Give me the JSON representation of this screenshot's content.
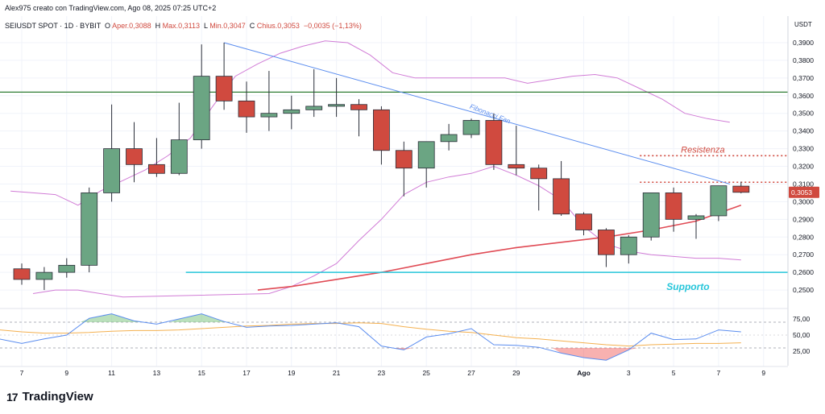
{
  "header": {
    "creator_line": "Alex975 creato con TradingView.com, Ago 08, 2025 07:25 UTC+2",
    "symbol": "SEIUSDT SPOT · 1D · BYBIT",
    "o_label": "O",
    "open": "Aper.0,3088",
    "h_label": "H",
    "high": "Max.0,3113",
    "l_label": "L",
    "low": "Min.0,3047",
    "c_label": "C",
    "close": "Chius.0,3053",
    "change": "−0,0035 (−1,13%)"
  },
  "branding": {
    "logo_text": "TradingView",
    "logo_mark": "17"
  },
  "colors": {
    "up": "#6ba583",
    "down": "#d04a3f",
    "support": "#26c6da",
    "resistance_green": "#2e7d32",
    "fib_fan": "#5b8def",
    "ma": "#e04b55",
    "bands": "#d17cd6",
    "rsi": "#5b8def",
    "rsi_ma": "#f4b04f"
  },
  "chart_data": {
    "type": "candlestick",
    "currency": "USDT",
    "ylim": [
      0.24,
      0.395
    ],
    "y_ticks": [
      "0,3900",
      "0,3800",
      "0,3700",
      "0,3600",
      "0,3500",
      "0,3400",
      "0,3300",
      "0,3200",
      "0,3100",
      "0,3000",
      "0,2900",
      "0,2800",
      "0,2700",
      "0,2600",
      "0,2500"
    ],
    "y_tick_values": [
      0.39,
      0.38,
      0.37,
      0.36,
      0.35,
      0.34,
      0.33,
      0.32,
      0.31,
      0.3,
      0.29,
      0.28,
      0.27,
      0.26,
      0.25
    ],
    "x_ticks": [
      {
        "label": "7",
        "day": 7
      },
      {
        "label": "9",
        "day": 9
      },
      {
        "label": "11",
        "day": 11
      },
      {
        "label": "13",
        "day": 13
      },
      {
        "label": "15",
        "day": 15
      },
      {
        "label": "17",
        "day": 17
      },
      {
        "label": "19",
        "day": 19
      },
      {
        "label": "21",
        "day": 21
      },
      {
        "label": "23",
        "day": 23
      },
      {
        "label": "25",
        "day": 25
      },
      {
        "label": "27",
        "day": 27
      },
      {
        "label": "29",
        "day": 29
      },
      {
        "label": "Ago",
        "day": 32
      },
      {
        "label": "3",
        "day": 34
      },
      {
        "label": "5",
        "day": 36
      },
      {
        "label": "7",
        "day": 38
      },
      {
        "label": "9",
        "day": 40
      }
    ],
    "candles": [
      {
        "d": 7,
        "o": 0.262,
        "h": 0.265,
        "l": 0.253,
        "c": 0.256
      },
      {
        "d": 8,
        "o": 0.256,
        "h": 0.263,
        "l": 0.25,
        "c": 0.26
      },
      {
        "d": 9,
        "o": 0.26,
        "h": 0.268,
        "l": 0.257,
        "c": 0.264
      },
      {
        "d": 10,
        "o": 0.264,
        "h": 0.308,
        "l": 0.26,
        "c": 0.305
      },
      {
        "d": 11,
        "o": 0.305,
        "h": 0.355,
        "l": 0.3,
        "c": 0.33
      },
      {
        "d": 12,
        "o": 0.33,
        "h": 0.345,
        "l": 0.311,
        "c": 0.321
      },
      {
        "d": 13,
        "o": 0.321,
        "h": 0.336,
        "l": 0.314,
        "c": 0.316
      },
      {
        "d": 14,
        "o": 0.316,
        "h": 0.356,
        "l": 0.315,
        "c": 0.335
      },
      {
        "d": 15,
        "o": 0.335,
        "h": 0.389,
        "l": 0.33,
        "c": 0.371
      },
      {
        "d": 16,
        "o": 0.371,
        "h": 0.39,
        "l": 0.352,
        "c": 0.357
      },
      {
        "d": 17,
        "o": 0.357,
        "h": 0.368,
        "l": 0.339,
        "c": 0.348
      },
      {
        "d": 18,
        "o": 0.348,
        "h": 0.374,
        "l": 0.34,
        "c": 0.35
      },
      {
        "d": 19,
        "o": 0.35,
        "h": 0.36,
        "l": 0.341,
        "c": 0.352
      },
      {
        "d": 20,
        "o": 0.352,
        "h": 0.375,
        "l": 0.348,
        "c": 0.354
      },
      {
        "d": 21,
        "o": 0.354,
        "h": 0.37,
        "l": 0.348,
        "c": 0.355
      },
      {
        "d": 22,
        "o": 0.355,
        "h": 0.358,
        "l": 0.337,
        "c": 0.352
      },
      {
        "d": 23,
        "o": 0.352,
        "h": 0.354,
        "l": 0.321,
        "c": 0.329
      },
      {
        "d": 24,
        "o": 0.329,
        "h": 0.334,
        "l": 0.303,
        "c": 0.319
      },
      {
        "d": 25,
        "o": 0.319,
        "h": 0.334,
        "l": 0.308,
        "c": 0.334
      },
      {
        "d": 26,
        "o": 0.334,
        "h": 0.344,
        "l": 0.329,
        "c": 0.338
      },
      {
        "d": 27,
        "o": 0.338,
        "h": 0.347,
        "l": 0.336,
        "c": 0.346
      },
      {
        "d": 28,
        "o": 0.346,
        "h": 0.35,
        "l": 0.318,
        "c": 0.321
      },
      {
        "d": 29,
        "o": 0.321,
        "h": 0.343,
        "l": 0.315,
        "c": 0.319
      },
      {
        "d": 30,
        "o": 0.319,
        "h": 0.321,
        "l": 0.295,
        "c": 0.313
      },
      {
        "d": 31,
        "o": 0.313,
        "h": 0.323,
        "l": 0.292,
        "c": 0.293
      },
      {
        "d": 32,
        "o": 0.293,
        "h": 0.294,
        "l": 0.281,
        "c": 0.284
      },
      {
        "d": 33,
        "o": 0.284,
        "h": 0.285,
        "l": 0.263,
        "c": 0.27
      },
      {
        "d": 34,
        "o": 0.27,
        "h": 0.281,
        "l": 0.265,
        "c": 0.28
      },
      {
        "d": 35,
        "o": 0.28,
        "h": 0.305,
        "l": 0.278,
        "c": 0.305
      },
      {
        "d": 36,
        "o": 0.305,
        "h": 0.308,
        "l": 0.283,
        "c": 0.29
      },
      {
        "d": 37,
        "o": 0.29,
        "h": 0.293,
        "l": 0.279,
        "c": 0.292
      },
      {
        "d": 38,
        "o": 0.292,
        "h": 0.309,
        "l": 0.289,
        "c": 0.309
      },
      {
        "d": 39,
        "o": 0.3088,
        "h": 0.3113,
        "l": 0.3047,
        "c": 0.3053
      }
    ],
    "upper_band": [
      [
        6.5,
        0.306
      ],
      [
        7.5,
        0.305
      ],
      [
        8.5,
        0.304
      ],
      [
        9.5,
        0.298
      ],
      [
        10.5,
        0.306
      ],
      [
        11.5,
        0.312
      ],
      [
        12.5,
        0.318
      ],
      [
        13.5,
        0.326
      ],
      [
        14.5,
        0.336
      ],
      [
        15.5,
        0.354
      ],
      [
        16.5,
        0.371
      ],
      [
        17.5,
        0.378
      ],
      [
        18.5,
        0.384
      ],
      [
        19.5,
        0.388
      ],
      [
        20.5,
        0.391
      ],
      [
        21.5,
        0.39
      ],
      [
        22.5,
        0.383
      ],
      [
        23.5,
        0.373
      ],
      [
        24.5,
        0.37
      ],
      [
        25.5,
        0.37
      ],
      [
        26.5,
        0.37
      ],
      [
        27.5,
        0.37
      ],
      [
        28.5,
        0.37
      ],
      [
        29.5,
        0.367
      ],
      [
        30.5,
        0.369
      ],
      [
        31.5,
        0.371
      ],
      [
        32.5,
        0.372
      ],
      [
        33.5,
        0.37
      ],
      [
        34.5,
        0.364
      ],
      [
        35.5,
        0.358
      ],
      [
        36.5,
        0.35
      ],
      [
        37.5,
        0.347
      ],
      [
        38.5,
        0.345
      ]
    ],
    "lower_band": [
      [
        7.5,
        0.248
      ],
      [
        8.5,
        0.25
      ],
      [
        9.5,
        0.25
      ],
      [
        10.5,
        0.248
      ],
      [
        11.5,
        0.246
      ],
      [
        18,
        0.248
      ],
      [
        19,
        0.252
      ],
      [
        20,
        0.258
      ],
      [
        21,
        0.265
      ],
      [
        22,
        0.278
      ],
      [
        23,
        0.29
      ],
      [
        24,
        0.304
      ],
      [
        25,
        0.311
      ],
      [
        26,
        0.314
      ],
      [
        27,
        0.316
      ],
      [
        28,
        0.32
      ],
      [
        29,
        0.315
      ],
      [
        30,
        0.309
      ],
      [
        31,
        0.301
      ],
      [
        32,
        0.286
      ],
      [
        33,
        0.276
      ],
      [
        34,
        0.272
      ],
      [
        35,
        0.27
      ],
      [
        36,
        0.269
      ],
      [
        37,
        0.268
      ],
      [
        38,
        0.268
      ],
      [
        39,
        0.267
      ]
    ],
    "moving_average": [
      [
        17.5,
        0.25
      ],
      [
        19,
        0.252
      ],
      [
        21,
        0.256
      ],
      [
        23,
        0.26
      ],
      [
        25,
        0.265
      ],
      [
        27,
        0.27
      ],
      [
        29,
        0.274
      ],
      [
        31,
        0.277
      ],
      [
        33,
        0.28
      ],
      [
        35,
        0.284
      ],
      [
        37,
        0.289
      ],
      [
        39,
        0.298
      ]
    ],
    "support": {
      "value": 0.26,
      "label": "Supporto",
      "from_day": 14.3
    },
    "resistance": {
      "value": 0.326,
      "label": "Resistenza",
      "from_day": 34.5
    },
    "resistance_dotted": {
      "value": 0.311,
      "from_day": 34.5
    },
    "green_line": {
      "value": 0.362
    },
    "fib_fan": {
      "label": "Fibonacci Fan",
      "start": [
        16,
        0.39
      ],
      "end": [
        38.5,
        0.31
      ]
    },
    "last_price": "0,3053",
    "oscillator": {
      "ticks": [
        "75,00",
        "50,00",
        "25,00"
      ],
      "tick_values": [
        75,
        50,
        25
      ],
      "ylim": [
        5,
        90
      ],
      "upper_level": 70,
      "lower_level": 30,
      "rsi": [
        [
          6,
          44
        ],
        [
          7,
          37
        ],
        [
          8,
          44
        ],
        [
          9,
          50
        ],
        [
          10,
          76
        ],
        [
          11,
          83
        ],
        [
          12,
          72
        ],
        [
          13,
          67
        ],
        [
          14,
          75
        ],
        [
          15,
          83
        ],
        [
          16,
          71
        ],
        [
          17,
          62
        ],
        [
          18,
          64
        ],
        [
          19,
          65
        ],
        [
          20,
          67
        ],
        [
          21,
          69
        ],
        [
          22,
          63
        ],
        [
          23,
          33
        ],
        [
          24,
          27
        ],
        [
          25,
          47
        ],
        [
          26,
          52
        ],
        [
          27,
          60
        ],
        [
          28,
          35
        ],
        [
          29,
          34
        ],
        [
          30,
          31
        ],
        [
          31,
          22
        ],
        [
          32,
          15
        ],
        [
          33,
          11
        ],
        [
          34,
          27
        ],
        [
          35,
          53
        ],
        [
          36,
          43
        ],
        [
          37,
          44
        ],
        [
          38,
          58
        ],
        [
          39,
          55
        ]
      ],
      "rsi_ma": [
        [
          6,
          58
        ],
        [
          7,
          55
        ],
        [
          8,
          53
        ],
        [
          9,
          53
        ],
        [
          10,
          54
        ],
        [
          11,
          56
        ],
        [
          12,
          57
        ],
        [
          13,
          57
        ],
        [
          14,
          58
        ],
        [
          15,
          60
        ],
        [
          16,
          62
        ],
        [
          17,
          64
        ],
        [
          18,
          65
        ],
        [
          19,
          67
        ],
        [
          20,
          68
        ],
        [
          21,
          68
        ],
        [
          22,
          69
        ],
        [
          23,
          68
        ],
        [
          24,
          63
        ],
        [
          25,
          59
        ],
        [
          26,
          56
        ],
        [
          27,
          54
        ],
        [
          28,
          50
        ],
        [
          29,
          46
        ],
        [
          30,
          44
        ],
        [
          31,
          41
        ],
        [
          32,
          38
        ],
        [
          33,
          35
        ],
        [
          34,
          33
        ],
        [
          35,
          35
        ],
        [
          36,
          36
        ],
        [
          37,
          37
        ],
        [
          38,
          37
        ],
        [
          39,
          38
        ]
      ]
    }
  }
}
